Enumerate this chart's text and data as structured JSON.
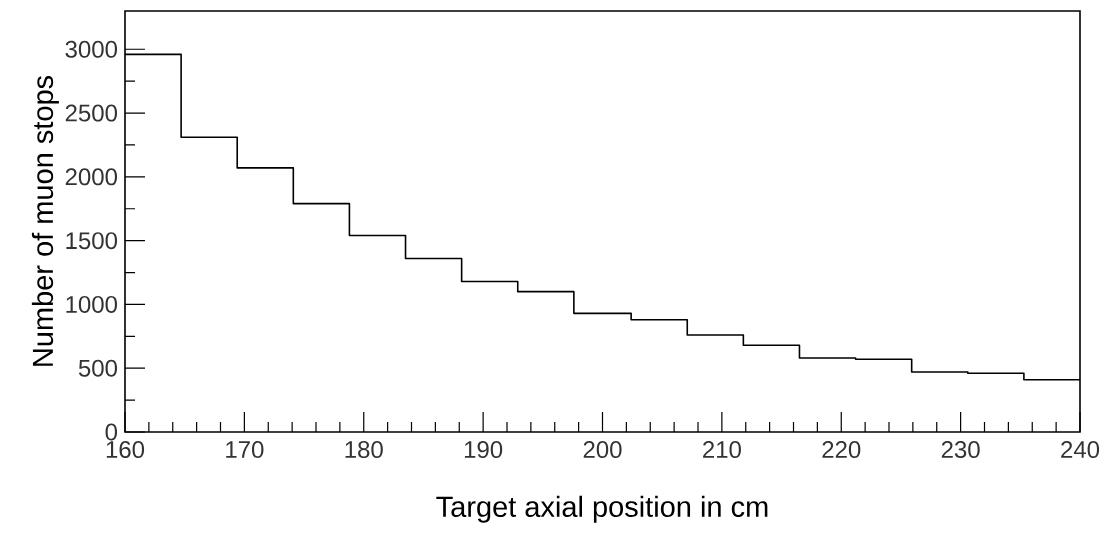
{
  "chart_data": {
    "type": "histogram",
    "xlabel": "Target axial position in cm",
    "ylabel": "Number of muon stops",
    "bins": [
      160,
      164.7,
      169.4,
      174.1,
      178.8,
      183.5,
      188.2,
      192.9,
      197.6,
      202.4,
      207.1,
      211.8,
      216.5,
      221.2,
      225.9,
      230.6,
      235.3,
      240
    ],
    "values": [
      2960,
      2310,
      2070,
      1790,
      1540,
      1360,
      1180,
      1100,
      930,
      880,
      760,
      680,
      580,
      570,
      470,
      460,
      410
    ],
    "color": "#000000",
    "xlim": [
      160,
      240
    ],
    "xticks": [
      160,
      170,
      180,
      190,
      200,
      210,
      220,
      230,
      240
    ],
    "ylim": [
      0,
      3300
    ],
    "yticks": [
      0,
      500,
      1000,
      1500,
      2000,
      2500,
      3000
    ],
    "grid": false
  }
}
